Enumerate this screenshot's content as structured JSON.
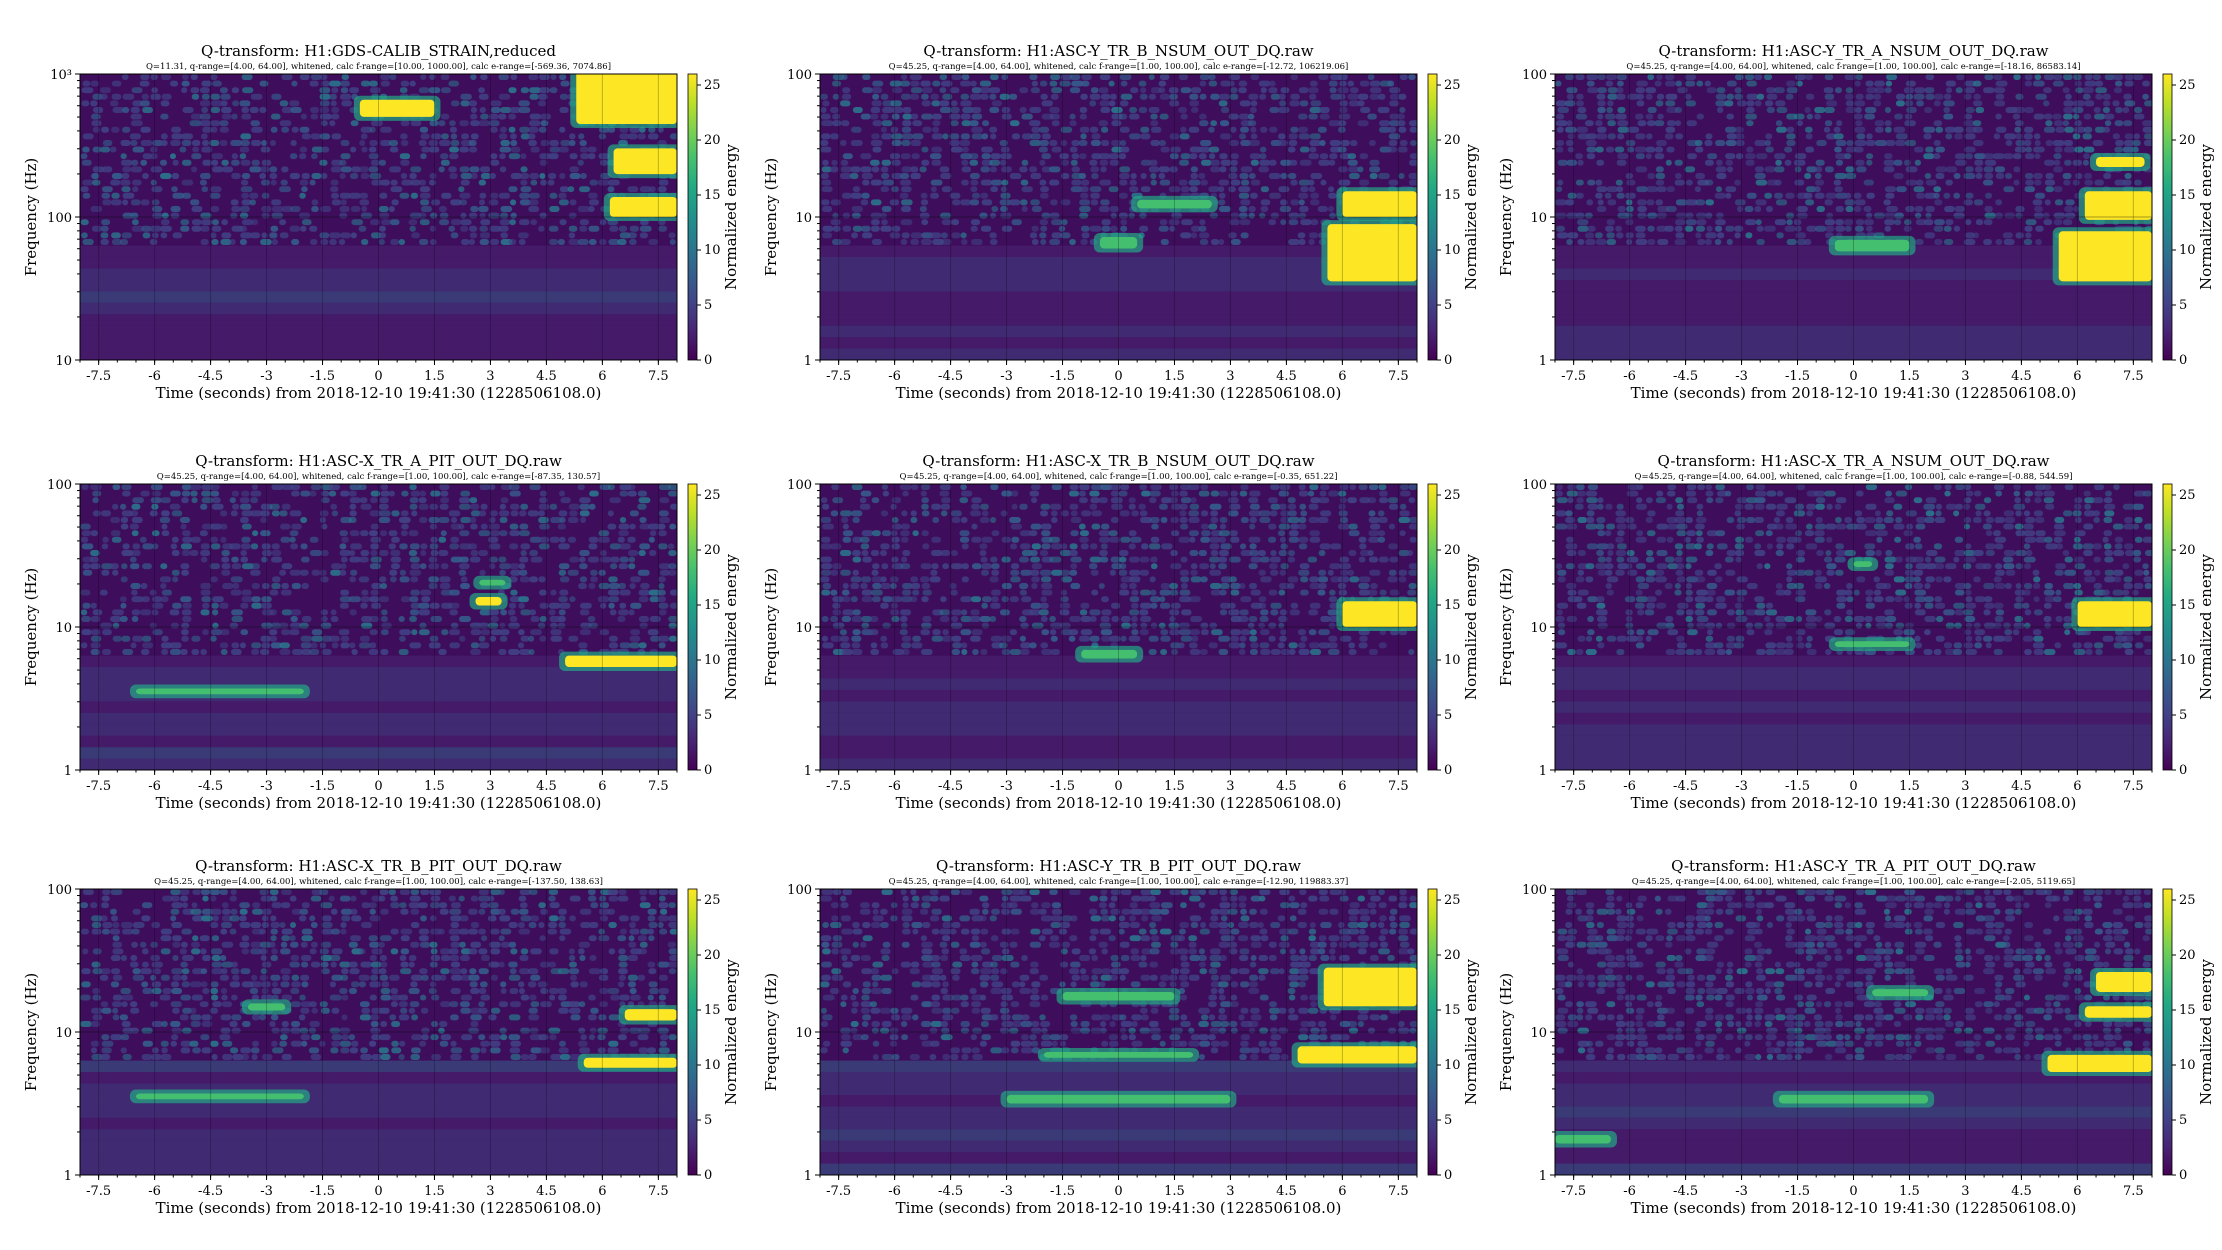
{
  "panels": [
    {
      "title": "Q-transform: H1:GDS-CALIB_STRAIN,reduced",
      "subtitle": "Q=11.31, q-range=[4.00, 64.00], whitened, calc f-range=[10.00, 1000.00], calc e-range=[-569.36, 7074.86]",
      "yticks": [
        "10",
        "100",
        "10³"
      ],
      "blobs": [
        [
          -0.5,
          1.5,
          1.7,
          1.82,
          0.8
        ],
        [
          5.3,
          8.0,
          1.65,
          2.12,
          0.85
        ],
        [
          6.3,
          8.0,
          1.3,
          1.48,
          0.95
        ],
        [
          6.2,
          8.0,
          1.0,
          1.14,
          0.9
        ]
      ]
    },
    {
      "title": "Q-transform: H1:ASC-Y_TR_B_NSUM_OUT_DQ.raw",
      "subtitle": "Q=45.25, q-range=[4.00, 64.00], whitened, calc f-range=[1.00, 100.00], calc e-range=[-12.72, 106219.06]",
      "yticks": [
        "1",
        "10",
        "100"
      ],
      "blobs": [
        [
          5.6,
          8.0,
          0.55,
          0.95,
          1.0
        ],
        [
          6.0,
          8.0,
          1.0,
          1.18,
          0.95
        ],
        [
          -0.5,
          0.5,
          0.78,
          0.86,
          0.6
        ],
        [
          0.5,
          2.5,
          1.06,
          1.12,
          0.35
        ]
      ]
    },
    {
      "title": "Q-transform: H1:ASC-Y_TR_A_NSUM_OUT_DQ.raw",
      "subtitle": "Q=45.25, q-range=[4.00, 64.00], whitened, calc f-range=[1.00, 100.00], calc e-range=[-18.16, 86583.14]",
      "yticks": [
        "1",
        "10",
        "100"
      ],
      "blobs": [
        [
          5.5,
          8.0,
          0.55,
          0.9,
          1.0
        ],
        [
          6.2,
          8.0,
          0.98,
          1.18,
          0.95
        ],
        [
          -0.5,
          1.5,
          0.76,
          0.84,
          0.45
        ],
        [
          6.5,
          7.8,
          1.35,
          1.42,
          0.8
        ]
      ]
    },
    {
      "title": "Q-transform: H1:ASC-X_TR_A_PIT_OUT_DQ.raw",
      "subtitle": "Q=45.25, q-range=[4.00, 64.00], whitened, calc f-range=[1.00, 100.00], calc e-range=[-87.35, 130.57]",
      "yticks": [
        "1",
        "10",
        "100"
      ],
      "blobs": [
        [
          5.0,
          8.0,
          0.72,
          0.8,
          1.0
        ],
        [
          2.6,
          3.3,
          1.15,
          1.21,
          0.85
        ],
        [
          2.7,
          3.4,
          1.29,
          1.33,
          0.7
        ],
        [
          -6.5,
          -2.0,
          0.53,
          0.57,
          0.3
        ]
      ]
    },
    {
      "title": "Q-transform: H1:ASC-X_TR_B_NSUM_OUT_DQ.raw",
      "subtitle": "Q=45.25, q-range=[4.00, 64.00], whitened, calc f-range=[1.00, 100.00], calc e-range=[-0.35, 651.22]",
      "yticks": [
        "1",
        "10",
        "100"
      ],
      "blobs": [
        [
          6.0,
          8.0,
          1.0,
          1.18,
          1.0
        ],
        [
          -1.0,
          0.5,
          0.78,
          0.84,
          0.5
        ]
      ]
    },
    {
      "title": "Q-transform: H1:ASC-X_TR_A_NSUM_OUT_DQ.raw",
      "subtitle": "Q=45.25, q-range=[4.00, 64.00], whitened, calc f-range=[1.00, 100.00], calc e-range=[-0.88, 544.59]",
      "yticks": [
        "1",
        "10",
        "100"
      ],
      "blobs": [
        [
          6.0,
          8.0,
          1.0,
          1.18,
          1.0
        ],
        [
          -0.5,
          1.5,
          0.86,
          0.9,
          0.5
        ],
        [
          0.0,
          0.5,
          1.42,
          1.46,
          0.6
        ]
      ]
    },
    {
      "title": "Q-transform: H1:ASC-X_TR_B_PIT_OUT_DQ.raw",
      "subtitle": "Q=45.25, q-range=[4.00, 64.00], whitened, calc f-range=[1.00, 100.00], calc e-range=[-137.50, 138.63]",
      "yticks": [
        "1",
        "10",
        "100"
      ],
      "blobs": [
        [
          5.5,
          8.0,
          0.75,
          0.82,
          1.0
        ],
        [
          6.6,
          8.0,
          1.08,
          1.16,
          0.9
        ],
        [
          -3.5,
          -2.5,
          1.15,
          1.2,
          0.6
        ],
        [
          -6.5,
          -2.0,
          0.53,
          0.57,
          0.3
        ]
      ]
    },
    {
      "title": "Q-transform: H1:ASC-Y_TR_B_PIT_OUT_DQ.raw",
      "subtitle": "Q=45.25, q-range=[4.00, 64.00], whitened, calc f-range=[1.00, 100.00], calc e-range=[-12.90, 119883.37]",
      "yticks": [
        "1",
        "10",
        "100"
      ],
      "blobs": [
        [
          4.8,
          8.0,
          0.78,
          0.9,
          1.0
        ],
        [
          5.5,
          8.0,
          1.18,
          1.45,
          0.75
        ],
        [
          -1.5,
          1.5,
          1.22,
          1.28,
          0.6
        ],
        [
          -2.0,
          2.0,
          0.82,
          0.86,
          0.6
        ],
        [
          -3.0,
          3.0,
          0.5,
          0.56,
          0.55
        ]
      ]
    },
    {
      "title": "Q-transform: H1:ASC-Y_TR_A_PIT_OUT_DQ.raw",
      "subtitle": "Q=45.25, q-range=[4.00, 64.00], whitened, calc f-range=[1.00, 100.00], calc e-range=[-2.05, 5119.65]",
      "yticks": [
        "1",
        "10",
        "100"
      ],
      "blobs": [
        [
          5.2,
          8.0,
          0.72,
          0.84,
          1.0
        ],
        [
          6.2,
          8.0,
          1.1,
          1.18,
          0.95
        ],
        [
          6.5,
          8.0,
          1.28,
          1.42,
          0.8
        ],
        [
          0.5,
          2.0,
          1.25,
          1.3,
          0.6
        ],
        [
          -2.0,
          2.0,
          0.5,
          0.56,
          0.4
        ],
        [
          -8.0,
          -6.5,
          0.22,
          0.28,
          0.3
        ]
      ]
    }
  ],
  "xlabel": "Time (seconds) from 2018-12-10 19:41:30 (1228506108.0)",
  "ylabel": "Frequency (Hz)",
  "cbar_label": "Normalized energy",
  "xticks": [
    "-7.5",
    "-6",
    "-4.5",
    "-3",
    "-1.5",
    "0",
    "1.5",
    "3",
    "4.5",
    "6",
    "7.5"
  ],
  "cbar_ticks": [
    "0",
    "5",
    "10",
    "15",
    "20",
    "25"
  ],
  "chart_data": {
    "type": "heatmap",
    "grid": "3x3",
    "x_range": [
      -8,
      8
    ],
    "xticks": [
      -7.5,
      -6,
      -4.5,
      -3,
      -1.5,
      0,
      1.5,
      3,
      4.5,
      6,
      7.5
    ],
    "color_range": [
      0,
      25
    ],
    "colormap": "viridis",
    "yscale": "log",
    "ylim_first": [
      10,
      1000
    ],
    "ylim_others": [
      1,
      100
    ],
    "xlabel": "Time (seconds) from 2018-12-10 19:41:30 (1228506108.0)",
    "ylabel": "Frequency (Hz)",
    "colorbar_label": "Normalized energy"
  }
}
